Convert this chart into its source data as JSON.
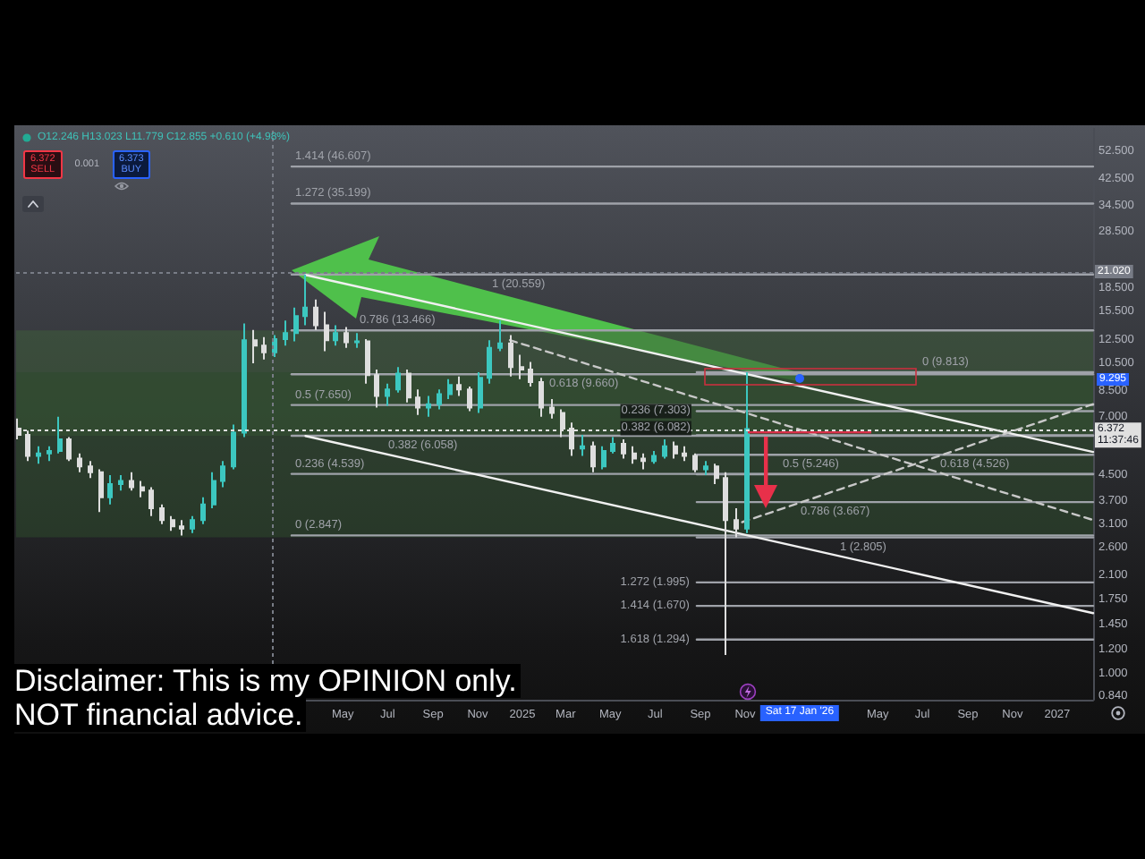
{
  "chart_data": {
    "type": "candlestick",
    "log": true,
    "xlim": [
      "2023-02-10",
      "2027-02-19"
    ],
    "ylim": [
      0.82,
      62
    ],
    "xticks": [
      {
        "value": "2024-05-01",
        "label": "May"
      },
      {
        "value": "2024-07-01",
        "label": "Jul"
      },
      {
        "value": "2024-09-01",
        "label": "Sep"
      },
      {
        "value": "2024-11-01",
        "label": "Nov"
      },
      {
        "value": "2025-01-01",
        "label": "2025"
      },
      {
        "value": "2025-03-01",
        "label": "Mar"
      },
      {
        "value": "2025-05-01",
        "label": "May"
      },
      {
        "value": "2025-07-01",
        "label": "Jul"
      },
      {
        "value": "2025-09-01",
        "label": "Sep"
      },
      {
        "value": "2025-11-01",
        "label": "Nov"
      },
      {
        "value": "2026-05-01",
        "label": "May"
      },
      {
        "value": "2026-07-01",
        "label": "Jul"
      },
      {
        "value": "2026-09-01",
        "label": "Sep"
      },
      {
        "value": "2026-11-01",
        "label": "Nov"
      },
      {
        "value": "2027-01-01",
        "label": "2027"
      }
    ],
    "yticks": [
      {
        "value": 52.5,
        "label": "52.500"
      },
      {
        "value": 42.5,
        "label": "42.500"
      },
      {
        "value": 34.5,
        "label": "34.500"
      },
      {
        "value": 28.5,
        "label": "28.500"
      },
      {
        "value": 18.5,
        "label": "18.500"
      },
      {
        "value": 15.5,
        "label": "15.500"
      },
      {
        "value": 12.5,
        "label": "12.500"
      },
      {
        "value": 10.5,
        "label": "10.500"
      },
      {
        "value": 8.5,
        "label": "8.500"
      },
      {
        "value": 7,
        "label": "7.000"
      },
      {
        "value": 4.5,
        "label": "4.500"
      },
      {
        "value": 3.7,
        "label": "3.700"
      },
      {
        "value": 3.1,
        "label": "3.100"
      },
      {
        "value": 2.6,
        "label": "2.600"
      },
      {
        "value": 2.1,
        "label": "2.100"
      },
      {
        "value": 1.75,
        "label": "1.750"
      },
      {
        "value": 1.45,
        "label": "1.450"
      },
      {
        "value": 1.2,
        "label": "1.200"
      },
      {
        "value": 1,
        "label": "1.000"
      },
      {
        "value": 0.84,
        "label": "0.840"
      }
    ],
    "series": [
      {
        "x": [
          "2023-02-13",
          "2023-02-27",
          "2023-03-13",
          "2023-03-27",
          "2023-04-10",
          "2023-04-24",
          "2023-05-08",
          "2023-05-22",
          "2023-06-05",
          "2023-06-19",
          "2023-07-03",
          "2023-07-17",
          "2023-07-31",
          "2023-08-14",
          "2023-08-28",
          "2023-09-11",
          "2023-09-25",
          "2023-10-09",
          "2023-10-23",
          "2023-11-06",
          "2023-11-20",
          "2023-12-04",
          "2023-12-18",
          "2024-01-01",
          "2024-01-15",
          "2024-01-29",
          "2024-02-12",
          "2024-02-26",
          "2024-03-11",
          "2024-03-25",
          "2024-04-08",
          "2024-04-22",
          "2024-05-06",
          "2024-05-20",
          "2024-06-03",
          "2024-06-17",
          "2024-07-01",
          "2024-07-15",
          "2024-07-29",
          "2024-08-12",
          "2024-08-26",
          "2024-09-09",
          "2024-09-23",
          "2024-10-07",
          "2024-10-21",
          "2024-11-04",
          "2024-11-18",
          "2024-12-02",
          "2024-12-16",
          "2024-12-30",
          "2025-01-13",
          "2025-01-27",
          "2025-02-10",
          "2025-02-24",
          "2025-03-10",
          "2025-03-24",
          "2025-04-07",
          "2025-04-21",
          "2025-05-05",
          "2025-05-19",
          "2025-06-02",
          "2025-06-16",
          "2025-06-30",
          "2025-07-14",
          "2025-07-28",
          "2025-08-11",
          "2025-08-25",
          "2025-09-08",
          "2025-09-22",
          "2025-10-06",
          "2025-10-20",
          "2025-11-03"
        ],
        "ohlc": [
          [
            6.4,
            6.9,
            5.9,
            6.1
          ],
          [
            6.1,
            6.3,
            5.0,
            5.2
          ],
          [
            5.2,
            5.6,
            4.9,
            5.3
          ],
          [
            5.3,
            5.6,
            5.0,
            5.4
          ],
          [
            5.4,
            7.0,
            5.3,
            5.9
          ],
          [
            5.9,
            6.0,
            5.0,
            5.1
          ],
          [
            5.1,
            5.3,
            4.6,
            4.8
          ],
          [
            4.8,
            5.0,
            4.4,
            4.6
          ],
          [
            4.6,
            4.7,
            3.4,
            3.8
          ],
          [
            3.8,
            4.5,
            3.6,
            4.2
          ],
          [
            4.2,
            4.5,
            4.0,
            4.3
          ],
          [
            4.3,
            4.6,
            4.0,
            4.1
          ],
          [
            4.1,
            4.3,
            3.8,
            4.0
          ],
          [
            4.0,
            4.1,
            3.3,
            3.5
          ],
          [
            3.5,
            3.6,
            3.1,
            3.2
          ],
          [
            3.2,
            3.3,
            2.95,
            3.05
          ],
          [
            3.05,
            3.2,
            2.847,
            3.0
          ],
          [
            3.0,
            3.3,
            2.9,
            3.2
          ],
          [
            3.2,
            3.8,
            3.1,
            3.6
          ],
          [
            3.6,
            4.6,
            3.5,
            4.3
          ],
          [
            4.3,
            5.0,
            4.1,
            4.8
          ],
          [
            4.8,
            6.6,
            4.7,
            6.2
          ],
          [
            6.2,
            14.2,
            6.0,
            12.5
          ],
          [
            12.5,
            13.5,
            10.5,
            12.0
          ],
          [
            12.0,
            12.8,
            10.8,
            11.4
          ],
          [
            11.4,
            13.0,
            11.0,
            12.6
          ],
          [
            12.6,
            14.5,
            12.0,
            13.2
          ],
          [
            13.2,
            16.0,
            12.4,
            15.0
          ],
          [
            15.0,
            20.559,
            14.0,
            16.0
          ],
          [
            16.0,
            17.0,
            13.5,
            14.0
          ],
          [
            14.0,
            15.5,
            11.5,
            12.5
          ],
          [
            12.5,
            14.0,
            12.0,
            13.2
          ],
          [
            13.2,
            13.8,
            11.8,
            12.3
          ],
          [
            12.3,
            13.2,
            11.8,
            12.4
          ],
          [
            12.4,
            12.6,
            9.0,
            9.6
          ],
          [
            9.6,
            10.0,
            7.5,
            8.2
          ],
          [
            8.2,
            9.0,
            7.6,
            8.6
          ],
          [
            8.6,
            10.2,
            8.4,
            9.7
          ],
          [
            9.7,
            10.0,
            7.8,
            8.1
          ],
          [
            8.1,
            8.6,
            7.1,
            7.5
          ],
          [
            7.5,
            8.2,
            7.0,
            7.7
          ],
          [
            7.7,
            8.6,
            7.4,
            8.3
          ],
          [
            8.3,
            9.3,
            8.0,
            8.9
          ],
          [
            8.9,
            9.5,
            8.2,
            8.6
          ],
          [
            8.6,
            8.8,
            7.3,
            7.5
          ],
          [
            7.5,
            9.8,
            7.2,
            9.4
          ],
          [
            9.4,
            12.5,
            9.0,
            11.8
          ],
          [
            11.8,
            14.5,
            11.5,
            12.2
          ],
          [
            12.2,
            13.0,
            9.5,
            10.2
          ],
          [
            10.2,
            11.2,
            9.3,
            10.0
          ],
          [
            10.0,
            10.6,
            8.8,
            9.1
          ],
          [
            9.1,
            9.4,
            7.0,
            7.5
          ],
          [
            7.5,
            8.0,
            6.9,
            7.2
          ],
          [
            7.2,
            7.4,
            6.0,
            6.4
          ],
          [
            6.4,
            6.7,
            5.2,
            5.5
          ],
          [
            5.5,
            6.1,
            5.2,
            5.6
          ],
          [
            5.6,
            5.8,
            4.6,
            4.8
          ],
          [
            4.8,
            5.6,
            4.7,
            5.4
          ],
          [
            5.4,
            6.0,
            5.3,
            5.7
          ],
          [
            5.7,
            5.9,
            5.1,
            5.3
          ],
          [
            5.3,
            5.6,
            4.9,
            5.1
          ],
          [
            5.1,
            5.3,
            4.7,
            5.0
          ],
          [
            5.0,
            5.4,
            4.9,
            5.2
          ],
          [
            5.2,
            5.9,
            5.1,
            5.6
          ],
          [
            5.6,
            5.8,
            5.1,
            5.3
          ],
          [
            5.3,
            5.6,
            5.0,
            5.2
          ],
          [
            5.2,
            5.3,
            4.6,
            4.7
          ],
          [
            4.7,
            5.0,
            4.5,
            4.8
          ],
          [
            4.8,
            4.9,
            4.2,
            4.4
          ],
          [
            4.4,
            4.6,
            1.15,
            3.2
          ],
          [
            3.2,
            3.5,
            2.805,
            3.0
          ],
          [
            3.0,
            9.813,
            2.9,
            6.372
          ]
        ],
        "colors": [
          "#dedede",
          "#dedede",
          "#3cc7c0",
          "#3cc7c0",
          "#3cc7c0",
          "#dedede",
          "#dedede",
          "#dedede",
          "#dedede",
          "#3cc7c0",
          "#3cc7c0",
          "#dedede",
          "#dedede",
          "#dedede",
          "#dedede",
          "#dedede",
          "#dedede",
          "#3cc7c0",
          "#3cc7c0",
          "#3cc7c0",
          "#3cc7c0",
          "#3cc7c0",
          "#3cc7c0",
          "#dedede",
          "#dedede",
          "#3cc7c0",
          "#3cc7c0",
          "#3cc7c0",
          "#3cc7c0",
          "#dedede",
          "#dedede",
          "#3cc7c0",
          "#dedede",
          "#3cc7c0",
          "#dedede",
          "#dedede",
          "#3cc7c0",
          "#3cc7c0",
          "#dedede",
          "#dedede",
          "#3cc7c0",
          "#3cc7c0",
          "#3cc7c0",
          "#dedede",
          "#dedede",
          "#3cc7c0",
          "#3cc7c0",
          "#3cc7c0",
          "#dedede",
          "#dedede",
          "#dedede",
          "#dedede",
          "#dedede",
          "#dedede",
          "#dedede",
          "#3cc7c0",
          "#dedede",
          "#3cc7c0",
          "#3cc7c0",
          "#dedede",
          "#dedede",
          "#dedede",
          "#3cc7c0",
          "#3cc7c0",
          "#dedede",
          "#dedede",
          "#dedede",
          "#3cc7c0",
          "#dedede",
          "#dedede",
          "#dedede",
          "#3cc7c0"
        ]
      },
      {
        "type": "line",
        "name": "1.414 (46.607)",
        "x": [
          "2024-02-21",
          "2027-02-19"
        ],
        "values": [
          46.607,
          46.607
        ],
        "color": "#9fa2a9"
      },
      {
        "type": "line",
        "name": "1.272 (35.199)",
        "x": [
          "2024-02-21",
          "2027-02-19"
        ],
        "values": [
          35.199,
          35.199
        ],
        "color": "#9fa2a9"
      },
      {
        "type": "line",
        "name": "1 (20.559)",
        "x": [
          "2024-02-21",
          "2027-02-19"
        ],
        "values": [
          20.559,
          20.559
        ],
        "color": "#9fa2a9"
      },
      {
        "type": "line",
        "name": "0.786 (13.466)",
        "x": [
          "2024-02-21",
          "2027-02-19"
        ],
        "values": [
          13.466,
          13.466
        ],
        "color": "#9fa2a9"
      },
      {
        "type": "line",
        "name": "0.618 (9.660)",
        "x": [
          "2024-02-21",
          "2027-02-19"
        ],
        "values": [
          9.66,
          9.66
        ],
        "color": "#9fa2a9"
      },
      {
        "type": "line",
        "name": "0.5 (7.650)",
        "x": [
          "2024-02-21",
          "2027-02-19"
        ],
        "values": [
          7.65,
          7.65
        ],
        "color": "#9fa2a9"
      },
      {
        "type": "line",
        "name": "0.382 (6.058)",
        "x": [
          "2024-02-21",
          "2027-02-19"
        ],
        "values": [
          6.058,
          6.058
        ],
        "color": "#9fa2a9"
      },
      {
        "type": "line",
        "name": "0.236 (4.539)",
        "x": [
          "2024-02-21",
          "2027-02-19"
        ],
        "values": [
          4.539,
          4.539
        ],
        "color": "#9fa2a9"
      },
      {
        "type": "line",
        "name": "0 (2.847)",
        "x": [
          "2024-02-21",
          "2027-02-19"
        ],
        "values": [
          2.847,
          2.847
        ],
        "color": "#9fa2a9"
      },
      {
        "type": "line",
        "name": "0 (9.813)",
        "x": [
          "2025-08-27",
          "2027-02-19"
        ],
        "values": [
          9.813,
          9.813
        ],
        "color": "#9fa2a9"
      },
      {
        "type": "line",
        "name": "0.236 (7.303)",
        "x": [
          "2025-08-27",
          "2027-02-19"
        ],
        "values": [
          7.303,
          7.303
        ],
        "color": "#9fa2a9"
      },
      {
        "type": "line",
        "name": "0.382 (6.082)",
        "x": [
          "2025-08-27",
          "2027-02-19"
        ],
        "values": [
          6.082,
          6.082
        ],
        "color": "#9fa2a9"
      },
      {
        "type": "line",
        "name": "0.5 (5.246)",
        "x": [
          "2025-08-27",
          "2027-02-19"
        ],
        "values": [
          5.246,
          5.246
        ],
        "color": "#9fa2a9"
      },
      {
        "type": "line",
        "name": "0.618 (4.526)",
        "x": [
          "2025-08-27",
          "2027-02-19"
        ],
        "values": [
          4.526,
          4.526
        ],
        "color": "#9fa2a9"
      },
      {
        "type": "line",
        "name": "0.786 (3.667)",
        "x": [
          "2025-08-27",
          "2027-02-19"
        ],
        "values": [
          3.667,
          3.667
        ],
        "color": "#9fa2a9"
      },
      {
        "type": "line",
        "name": "1 (2.805)",
        "x": [
          "2025-08-27",
          "2027-02-19"
        ],
        "values": [
          2.805,
          2.805
        ],
        "color": "#9fa2a9"
      },
      {
        "type": "line",
        "name": "1.272 (1.995)",
        "x": [
          "2025-08-27",
          "2027-02-19"
        ],
        "values": [
          1.995,
          1.995
        ],
        "color": "#9fa2a9"
      },
      {
        "type": "line",
        "name": "1.414 (1.670)",
        "x": [
          "2025-08-27",
          "2027-02-19"
        ],
        "values": [
          1.67,
          1.67
        ],
        "color": "#9fa2a9"
      },
      {
        "type": "line",
        "name": "1.618 (1.294)",
        "x": [
          "2025-08-27",
          "2027-02-19"
        ],
        "values": [
          1.294,
          1.294
        ],
        "color": "#9fa2a9"
      },
      {
        "type": "line",
        "x": [
          "2024-03-11",
          "2027-02-19"
        ],
        "values": [
          20.5,
          5.36
        ],
        "color": "#f0f0f0"
      },
      {
        "type": "line",
        "x": [
          "2024-03-11",
          "2027-02-19"
        ],
        "values": [
          6.05,
          1.58
        ],
        "color": "#f0f0f0"
      },
      {
        "type": "line",
        "x": [
          "2024-12-15",
          "2027-02-19"
        ],
        "values": [
          12.5,
          3.2
        ],
        "color": "#c8c8c8",
        "line_style": "dashed"
      },
      {
        "type": "line",
        "x": [
          "2025-10-28",
          "2027-02-19"
        ],
        "values": [
          3.15,
          7.7
        ],
        "color": "#c8c8c8",
        "line_style": "dashed"
      }
    ],
    "bands": [
      {
        "axis": "y",
        "from": 6.058,
        "to": 13.466,
        "color": "#3e5c3b"
      },
      {
        "axis": "y",
        "from": 2.805,
        "to": 9.813,
        "color": "#2d4a2c"
      }
    ],
    "ref_lines": [
      {
        "axis": "y",
        "value": 21.02,
        "label": "21.020",
        "line_style": "dotted",
        "color": "#787c86"
      },
      {
        "axis": "x",
        "value": "2024-01-27",
        "line_style": "dotted",
        "color": "#787c86"
      },
      {
        "axis": "y",
        "value": 6.372,
        "label": "6.372\n11:37:46",
        "line_style": "dotted",
        "color": "#e0e0e0"
      }
    ],
    "annotations": [
      "O12.246 H13.023 L11.779 C12.855 +0.610 (+4.98%)",
      "6.372\nSELL",
      "0.001",
      "6.373\nBUY",
      {
        "text": "9.295",
        "y": 9.295
      },
      "Sat 17 Jan '26",
      "Disclaimer: This is my OPINION only.",
      "NOT financial advice."
    ]
  }
}
